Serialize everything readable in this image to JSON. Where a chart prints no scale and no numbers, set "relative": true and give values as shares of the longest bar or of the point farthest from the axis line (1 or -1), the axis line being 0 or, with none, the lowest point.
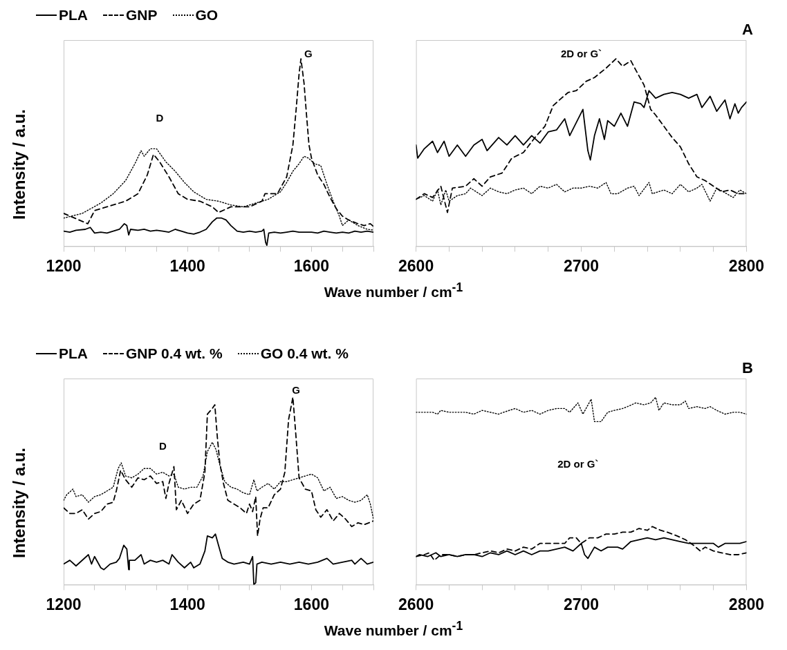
{
  "chart_data": [
    {
      "type": "line",
      "relative": true,
      "ylabel": "Intensity / a.u.",
      "xlabel": "Wave number / cm$^{-1}$",
      "legend": "top",
      "tick_labels": "x",
      "xlim": [
        1200,
        1700
      ],
      "xticks": [
        1200,
        {
          "value": 1250,
          "label": null
        },
        {
          "value": 1300,
          "label": null
        },
        {
          "value": 1350,
          "label": null
        },
        1400,
        {
          "value": 1450,
          "label": null
        },
        {
          "value": 1500,
          "label": null
        },
        {
          "value": 1550,
          "label": null
        },
        1600,
        {
          "value": 1650,
          "label": null
        },
        {
          "value": 1700,
          "label": null
        }
      ],
      "annotations": [
        "D",
        "G"
      ],
      "series": [
        {
          "name": "PLA",
          "color": "#000000",
          "line_style": "solid",
          "x": [
            1200,
            1210,
            1220,
            1235,
            1243,
            1250,
            1260,
            1270,
            1280,
            1290,
            1298,
            1302,
            1305,
            1308,
            1320,
            1330,
            1340,
            1350,
            1360,
            1370,
            1380,
            1390,
            1400,
            1410,
            1420,
            1430,
            1440,
            1447,
            1455,
            1462,
            1470,
            1480,
            1490,
            1500,
            1510,
            1520,
            1523,
            1526,
            1528,
            1531,
            1540,
            1550,
            1560,
            1570,
            1580,
            1590,
            1600,
            1610,
            1620,
            1630,
            1640,
            1650,
            1660,
            1670,
            1680,
            1690,
            1700
          ],
          "values": [
            0.08,
            0.075,
            0.085,
            0.09,
            0.1,
            0.07,
            0.075,
            0.07,
            0.08,
            0.09,
            0.12,
            0.11,
            0.06,
            0.09,
            0.085,
            0.09,
            0.08,
            0.085,
            0.08,
            0.075,
            0.09,
            0.08,
            0.07,
            0.065,
            0.075,
            0.09,
            0.13,
            0.15,
            0.15,
            0.14,
            0.11,
            0.08,
            0.075,
            0.08,
            0.075,
            0.08,
            0.09,
            0.02,
            0.005,
            0.07,
            0.075,
            0.07,
            0.075,
            0.08,
            0.075,
            0.075,
            0.075,
            0.07,
            0.08,
            0.075,
            0.07,
            0.075,
            0.07,
            0.08,
            0.075,
            0.08,
            0.075
          ]
        },
        {
          "name": "GNP",
          "color": "#000000",
          "line_style": "dashed",
          "x": [
            1200,
            1239,
            1250,
            1300,
            1320,
            1335,
            1345,
            1355,
            1370,
            1385,
            1400,
            1420,
            1440,
            1450,
            1470,
            1500,
            1520,
            1525,
            1545,
            1560,
            1570,
            1575,
            1580,
            1583,
            1588,
            1592,
            1596,
            1600,
            1610,
            1620,
            1630,
            1640,
            1650,
            1660,
            1675,
            1685,
            1695,
            1700
          ],
          "values": [
            0.175,
            0.12,
            0.19,
            0.24,
            0.28,
            0.38,
            0.49,
            0.45,
            0.37,
            0.28,
            0.25,
            0.24,
            0.21,
            0.18,
            0.21,
            0.21,
            0.24,
            0.28,
            0.28,
            0.37,
            0.54,
            0.72,
            0.92,
            1,
            0.87,
            0.7,
            0.54,
            0.47,
            0.38,
            0.33,
            0.26,
            0.2,
            0.16,
            0.14,
            0.12,
            0.11,
            0.12,
            0.105
          ]
        },
        {
          "name": "GO",
          "color": "#000000",
          "line_style": "dotted",
          "x": [
            1200,
            1230,
            1260,
            1280,
            1300,
            1315,
            1325,
            1330,
            1340,
            1350,
            1365,
            1380,
            1395,
            1410,
            1430,
            1450,
            1470,
            1490,
            1510,
            1530,
            1550,
            1560,
            1570,
            1580,
            1588,
            1595,
            1605,
            1615,
            1625,
            1635,
            1645,
            1650,
            1660,
            1675,
            1690,
            1700
          ],
          "values": [
            0.15,
            0.175,
            0.23,
            0.28,
            0.35,
            0.44,
            0.51,
            0.48,
            0.52,
            0.52,
            0.45,
            0.4,
            0.34,
            0.29,
            0.25,
            0.24,
            0.22,
            0.21,
            0.23,
            0.25,
            0.29,
            0.34,
            0.4,
            0.44,
            0.48,
            0.47,
            0.44,
            0.43,
            0.33,
            0.24,
            0.16,
            0.11,
            0.14,
            0.11,
            0.09,
            0.086
          ]
        }
      ]
    },
    {
      "type": "line",
      "relative": true,
      "tick_labels": "x",
      "xlim": [
        2600,
        2800
      ],
      "xticks": [
        2600,
        {
          "value": 2620,
          "label": null
        },
        {
          "value": 2640,
          "label": null
        },
        {
          "value": 2660,
          "label": null
        },
        {
          "value": 2680,
          "label": null
        },
        2700,
        {
          "value": 2720,
          "label": null
        },
        {
          "value": 2740,
          "label": null
        },
        {
          "value": 2760,
          "label": null
        },
        {
          "value": 2780,
          "label": null
        },
        2800
      ],
      "annotations": [
        "2D or G`",
        "A"
      ],
      "series": [
        {
          "color": "#000000",
          "line_style": "solid",
          "x": [
            2600,
            2601,
            2605,
            2610,
            2613,
            2617,
            2620,
            2625,
            2630,
            2635,
            2640,
            2643,
            2650,
            2655,
            2660,
            2665,
            2670,
            2675,
            2680,
            2685,
            2690,
            2693,
            2697,
            2701,
            2704,
            2705.5,
            2708,
            2711,
            2714,
            2716,
            2720,
            2724,
            2728,
            2732,
            2736,
            2738,
            2741,
            2745,
            2750,
            2755,
            2760,
            2765,
            2770,
            2773,
            2778,
            2782,
            2787,
            2790,
            2793,
            2795,
            2797,
            2800
          ],
          "values": [
            0.54,
            0.47,
            0.52,
            0.56,
            0.5,
            0.56,
            0.48,
            0.54,
            0.48,
            0.54,
            0.57,
            0.51,
            0.58,
            0.54,
            0.59,
            0.54,
            0.59,
            0.55,
            0.61,
            0.62,
            0.68,
            0.59,
            0.66,
            0.73,
            0.51,
            0.46,
            0.59,
            0.68,
            0.57,
            0.67,
            0.64,
            0.71,
            0.64,
            0.77,
            0.76,
            0.74,
            0.83,
            0.79,
            0.81,
            0.82,
            0.81,
            0.79,
            0.81,
            0.74,
            0.8,
            0.72,
            0.78,
            0.68,
            0.76,
            0.71,
            0.74,
            0.77
          ]
        },
        {
          "color": "#000000",
          "line_style": "dashed",
          "x": [
            2600,
            2605,
            2610,
            2615,
            2619,
            2622,
            2630,
            2635,
            2640,
            2645,
            2652,
            2658,
            2665,
            2672,
            2678,
            2683,
            2688,
            2692,
            2697,
            2703,
            2708,
            2715,
            2721,
            2725,
            2730,
            2733,
            2738,
            2742,
            2745,
            2750,
            2755,
            2760,
            2765,
            2770,
            2775,
            2780,
            2785,
            2790,
            2795,
            2800
          ],
          "values": [
            0.25,
            0.28,
            0.26,
            0.32,
            0.18,
            0.31,
            0.32,
            0.36,
            0.32,
            0.37,
            0.39,
            0.47,
            0.5,
            0.58,
            0.64,
            0.75,
            0.79,
            0.82,
            0.83,
            0.88,
            0.9,
            0.95,
            1,
            0.96,
            0.99,
            0.94,
            0.86,
            0.73,
            0.7,
            0.64,
            0.58,
            0.53,
            0.44,
            0.37,
            0.35,
            0.32,
            0.29,
            0.3,
            0.28,
            0.28
          ]
        },
        {
          "color": "#000000",
          "line_style": "dotted",
          "x": [
            2600,
            2605,
            2610,
            2613,
            2615,
            2618,
            2620,
            2625,
            2630,
            2633,
            2640,
            2645,
            2650,
            2655,
            2660,
            2665,
            2670,
            2675,
            2680,
            2685,
            2690,
            2695,
            2700,
            2705,
            2710,
            2715,
            2718,
            2722,
            2728,
            2732,
            2735,
            2741,
            2743,
            2750,
            2755,
            2760,
            2765,
            2770,
            2773,
            2778,
            2782,
            2788,
            2792,
            2796,
            2800
          ],
          "values": [
            0.25,
            0.27,
            0.24,
            0.3,
            0.22,
            0.3,
            0.24,
            0.27,
            0.28,
            0.31,
            0.27,
            0.31,
            0.29,
            0.28,
            0.3,
            0.31,
            0.28,
            0.32,
            0.31,
            0.33,
            0.29,
            0.31,
            0.31,
            0.32,
            0.31,
            0.34,
            0.28,
            0.28,
            0.31,
            0.32,
            0.27,
            0.34,
            0.28,
            0.3,
            0.28,
            0.33,
            0.29,
            0.31,
            0.33,
            0.24,
            0.31,
            0.28,
            0.26,
            0.3,
            0.28
          ]
        }
      ]
    },
    {
      "type": "line",
      "relative": true,
      "ylabel": "Intensity / a.u.",
      "xlabel": "Wave number / cm$^{-1}$",
      "legend": "top",
      "tick_labels": "x",
      "xlim": [
        1200,
        1700
      ],
      "xticks": [
        1200,
        {
          "value": 1250,
          "label": null
        },
        {
          "value": 1300,
          "label": null
        },
        {
          "value": 1350,
          "label": null
        },
        1400,
        {
          "value": 1450,
          "label": null
        },
        {
          "value": 1500,
          "label": null
        },
        {
          "value": 1550,
          "label": null
        },
        1600,
        {
          "value": 1650,
          "label": null
        },
        {
          "value": 1700,
          "label": null
        }
      ],
      "annotations": [
        "D",
        "G"
      ],
      "series": [
        {
          "name": "PLA",
          "color": "#000000",
          "line_style": "solid",
          "x": [
            1200,
            1210,
            1220,
            1240,
            1245,
            1250,
            1260,
            1265,
            1275,
            1285,
            1290,
            1297,
            1302,
            1305,
            1306,
            1315,
            1325,
            1330,
            1340,
            1350,
            1360,
            1370,
            1375,
            1385,
            1395,
            1405,
            1410,
            1420,
            1428,
            1432,
            1440,
            1445,
            1450,
            1456,
            1465,
            1475,
            1490,
            1500,
            1505,
            1507,
            1510,
            1512,
            1520,
            1535,
            1550,
            1565,
            1580,
            1595,
            1610,
            1625,
            1635,
            1650,
            1665,
            1670,
            1680,
            1690,
            1700
          ],
          "values": [
            0.11,
            0.13,
            0.1,
            0.16,
            0.11,
            0.15,
            0.09,
            0.08,
            0.11,
            0.12,
            0.14,
            0.21,
            0.19,
            0.08,
            0.13,
            0.13,
            0.16,
            0.11,
            0.13,
            0.12,
            0.13,
            0.11,
            0.16,
            0.12,
            0.09,
            0.12,
            0.09,
            0.11,
            0.18,
            0.26,
            0.25,
            0.27,
            0.21,
            0.14,
            0.12,
            0.11,
            0.12,
            0.11,
            0.15,
            0,
            0.01,
            0.11,
            0.12,
            0.11,
            0.12,
            0.11,
            0.12,
            0.11,
            0.12,
            0.14,
            0.11,
            0.12,
            0.13,
            0.11,
            0.14,
            0.11,
            0.12
          ]
        },
        {
          "name": "GNP 0.4 wt. %",
          "color": "#000000",
          "line_style": "dashed",
          "x": [
            1200,
            1210,
            1220,
            1230,
            1240,
            1250,
            1260,
            1270,
            1280,
            1285,
            1292,
            1300,
            1310,
            1320,
            1330,
            1340,
            1350,
            1360,
            1365,
            1370,
            1378,
            1382,
            1390,
            1400,
            1410,
            1420,
            1428,
            1432,
            1440,
            1444,
            1448,
            1452,
            1458,
            1465,
            1475,
            1485,
            1495,
            1500,
            1505,
            1510,
            1513,
            1517,
            1522,
            1530,
            1540,
            1550,
            1557,
            1563,
            1570,
            1575,
            1580,
            1590,
            1600,
            1607,
            1615,
            1625,
            1635,
            1645,
            1655,
            1665,
            1675,
            1685,
            1700
          ],
          "values": [
            0.41,
            0.38,
            0.38,
            0.4,
            0.35,
            0.38,
            0.39,
            0.43,
            0.44,
            0.5,
            0.61,
            0.56,
            0.52,
            0.57,
            0.56,
            0.58,
            0.54,
            0.55,
            0.46,
            0.54,
            0.63,
            0.4,
            0.45,
            0.38,
            0.43,
            0.45,
            0.6,
            0.91,
            0.94,
            0.96,
            0.79,
            0.65,
            0.54,
            0.45,
            0.43,
            0.41,
            0.38,
            0.43,
            0.39,
            0.47,
            0.26,
            0.35,
            0.41,
            0.41,
            0.48,
            0.51,
            0.6,
            0.88,
            1,
            0.79,
            0.57,
            0.51,
            0.5,
            0.4,
            0.36,
            0.4,
            0.34,
            0.38,
            0.35,
            0.31,
            0.33,
            0.32,
            0.34
          ]
        },
        {
          "name": "GO 0.4 wt. %",
          "color": "#000000",
          "line_style": "dotted",
          "x": [
            1200,
            1205,
            1215,
            1220,
            1230,
            1240,
            1250,
            1260,
            1270,
            1280,
            1288,
            1293,
            1300,
            1310,
            1320,
            1330,
            1340,
            1350,
            1360,
            1370,
            1378,
            1385,
            1395,
            1405,
            1415,
            1425,
            1432,
            1440,
            1446,
            1452,
            1460,
            1470,
            1480,
            1490,
            1500,
            1507,
            1512,
            1520,
            1530,
            1540,
            1550,
            1560,
            1570,
            1580,
            1590,
            1600,
            1610,
            1620,
            1630,
            1640,
            1650,
            1660,
            1670,
            1680,
            1690,
            1695,
            1700
          ],
          "values": [
            0.45,
            0.48,
            0.51,
            0.47,
            0.48,
            0.44,
            0.47,
            0.48,
            0.5,
            0.52,
            0.62,
            0.65,
            0.58,
            0.57,
            0.59,
            0.62,
            0.62,
            0.59,
            0.6,
            0.58,
            0.59,
            0.52,
            0.51,
            0.52,
            0.52,
            0.58,
            0.71,
            0.76,
            0.72,
            0.64,
            0.55,
            0.52,
            0.51,
            0.49,
            0.48,
            0.56,
            0.5,
            0.52,
            0.54,
            0.51,
            0.55,
            0.55,
            0.56,
            0.57,
            0.58,
            0.59,
            0.57,
            0.5,
            0.52,
            0.46,
            0.47,
            0.45,
            0.44,
            0.45,
            0.48,
            0.43,
            0.35
          ]
        }
      ]
    },
    {
      "type": "line",
      "relative": true,
      "tick_labels": "x",
      "xlim": [
        2600,
        2800
      ],
      "xticks": [
        2600,
        {
          "value": 2620,
          "label": null
        },
        {
          "value": 2640,
          "label": null
        },
        {
          "value": 2660,
          "label": null
        },
        {
          "value": 2680,
          "label": null
        },
        2700,
        {
          "value": 2720,
          "label": null
        },
        {
          "value": 2740,
          "label": null
        },
        {
          "value": 2760,
          "label": null
        },
        {
          "value": 2780,
          "label": null
        },
        2800
      ],
      "annotations": [
        "2D or G`",
        "B"
      ],
      "series": [
        {
          "color": "#000000",
          "line_style": "solid",
          "x": [
            2600,
            2602,
            2607,
            2612,
            2615,
            2620,
            2625,
            2630,
            2635,
            2640,
            2645,
            2650,
            2655,
            2660,
            2665,
            2670,
            2675,
            2680,
            2685,
            2690,
            2695,
            2700,
            2702,
            2704,
            2708,
            2712,
            2716,
            2722,
            2725,
            2730,
            2735,
            2740,
            2745,
            2750,
            2755,
            2760,
            2765,
            2770,
            2775,
            2780,
            2783,
            2787,
            2792,
            2796,
            2800
          ],
          "values": [
            0.15,
            0.16,
            0.15,
            0.17,
            0.15,
            0.16,
            0.15,
            0.16,
            0.16,
            0.15,
            0.17,
            0.16,
            0.18,
            0.16,
            0.18,
            0.16,
            0.18,
            0.18,
            0.19,
            0.2,
            0.18,
            0.22,
            0.16,
            0.14,
            0.2,
            0.18,
            0.2,
            0.2,
            0.19,
            0.23,
            0.24,
            0.25,
            0.24,
            0.25,
            0.24,
            0.23,
            0.22,
            0.22,
            0.22,
            0.22,
            0.2,
            0.22,
            0.22,
            0.22,
            0.23
          ]
        },
        {
          "color": "#000000",
          "line_style": "dashed",
          "x": [
            2600,
            2605,
            2608,
            2611,
            2615,
            2620,
            2625,
            2630,
            2635,
            2640,
            2645,
            2650,
            2655,
            2660,
            2665,
            2670,
            2675,
            2680,
            2685,
            2690,
            2693,
            2697,
            2700,
            2705,
            2710,
            2715,
            2720,
            2725,
            2730,
            2735,
            2740,
            2743,
            2748,
            2752,
            2758,
            2763,
            2768,
            2772,
            2775,
            2780,
            2785,
            2790,
            2795,
            2800
          ],
          "values": [
            0.15,
            0.16,
            0.17,
            0.13,
            0.16,
            0.16,
            0.15,
            0.16,
            0.16,
            0.17,
            0.18,
            0.17,
            0.19,
            0.18,
            0.2,
            0.19,
            0.22,
            0.22,
            0.22,
            0.22,
            0.25,
            0.25,
            0.22,
            0.25,
            0.25,
            0.27,
            0.27,
            0.28,
            0.28,
            0.3,
            0.29,
            0.31,
            0.29,
            0.28,
            0.26,
            0.24,
            0.21,
            0.18,
            0.2,
            0.18,
            0.17,
            0.16,
            0.16,
            0.17
          ]
        },
        {
          "color": "#000000",
          "line_style": "dotted",
          "x": [
            2600,
            2605,
            2610,
            2613,
            2615,
            2620,
            2625,
            2630,
            2635,
            2640,
            2645,
            2650,
            2653,
            2660,
            2665,
            2670,
            2675,
            2680,
            2685,
            2690,
            2693,
            2698,
            2701,
            2706,
            2708,
            2712,
            2716,
            2720,
            2725,
            2728,
            2733,
            2738,
            2742,
            2745,
            2747,
            2750,
            2755,
            2760,
            2763,
            2765,
            2770,
            2775,
            2778,
            2782,
            2787,
            2792,
            2796,
            2800
          ],
          "values": [
            0.92,
            0.92,
            0.92,
            0.91,
            0.93,
            0.92,
            0.92,
            0.92,
            0.91,
            0.93,
            0.92,
            0.91,
            0.92,
            0.94,
            0.92,
            0.93,
            0.91,
            0.93,
            0.94,
            0.94,
            0.92,
            0.97,
            0.91,
            0.99,
            0.87,
            0.87,
            0.92,
            0.93,
            0.94,
            0.95,
            0.97,
            0.96,
            0.97,
            1,
            0.93,
            0.97,
            0.96,
            0.96,
            0.98,
            0.94,
            0.95,
            0.94,
            0.95,
            0.93,
            0.91,
            0.92,
            0.92,
            0.91
          ]
        }
      ]
    }
  ]
}
